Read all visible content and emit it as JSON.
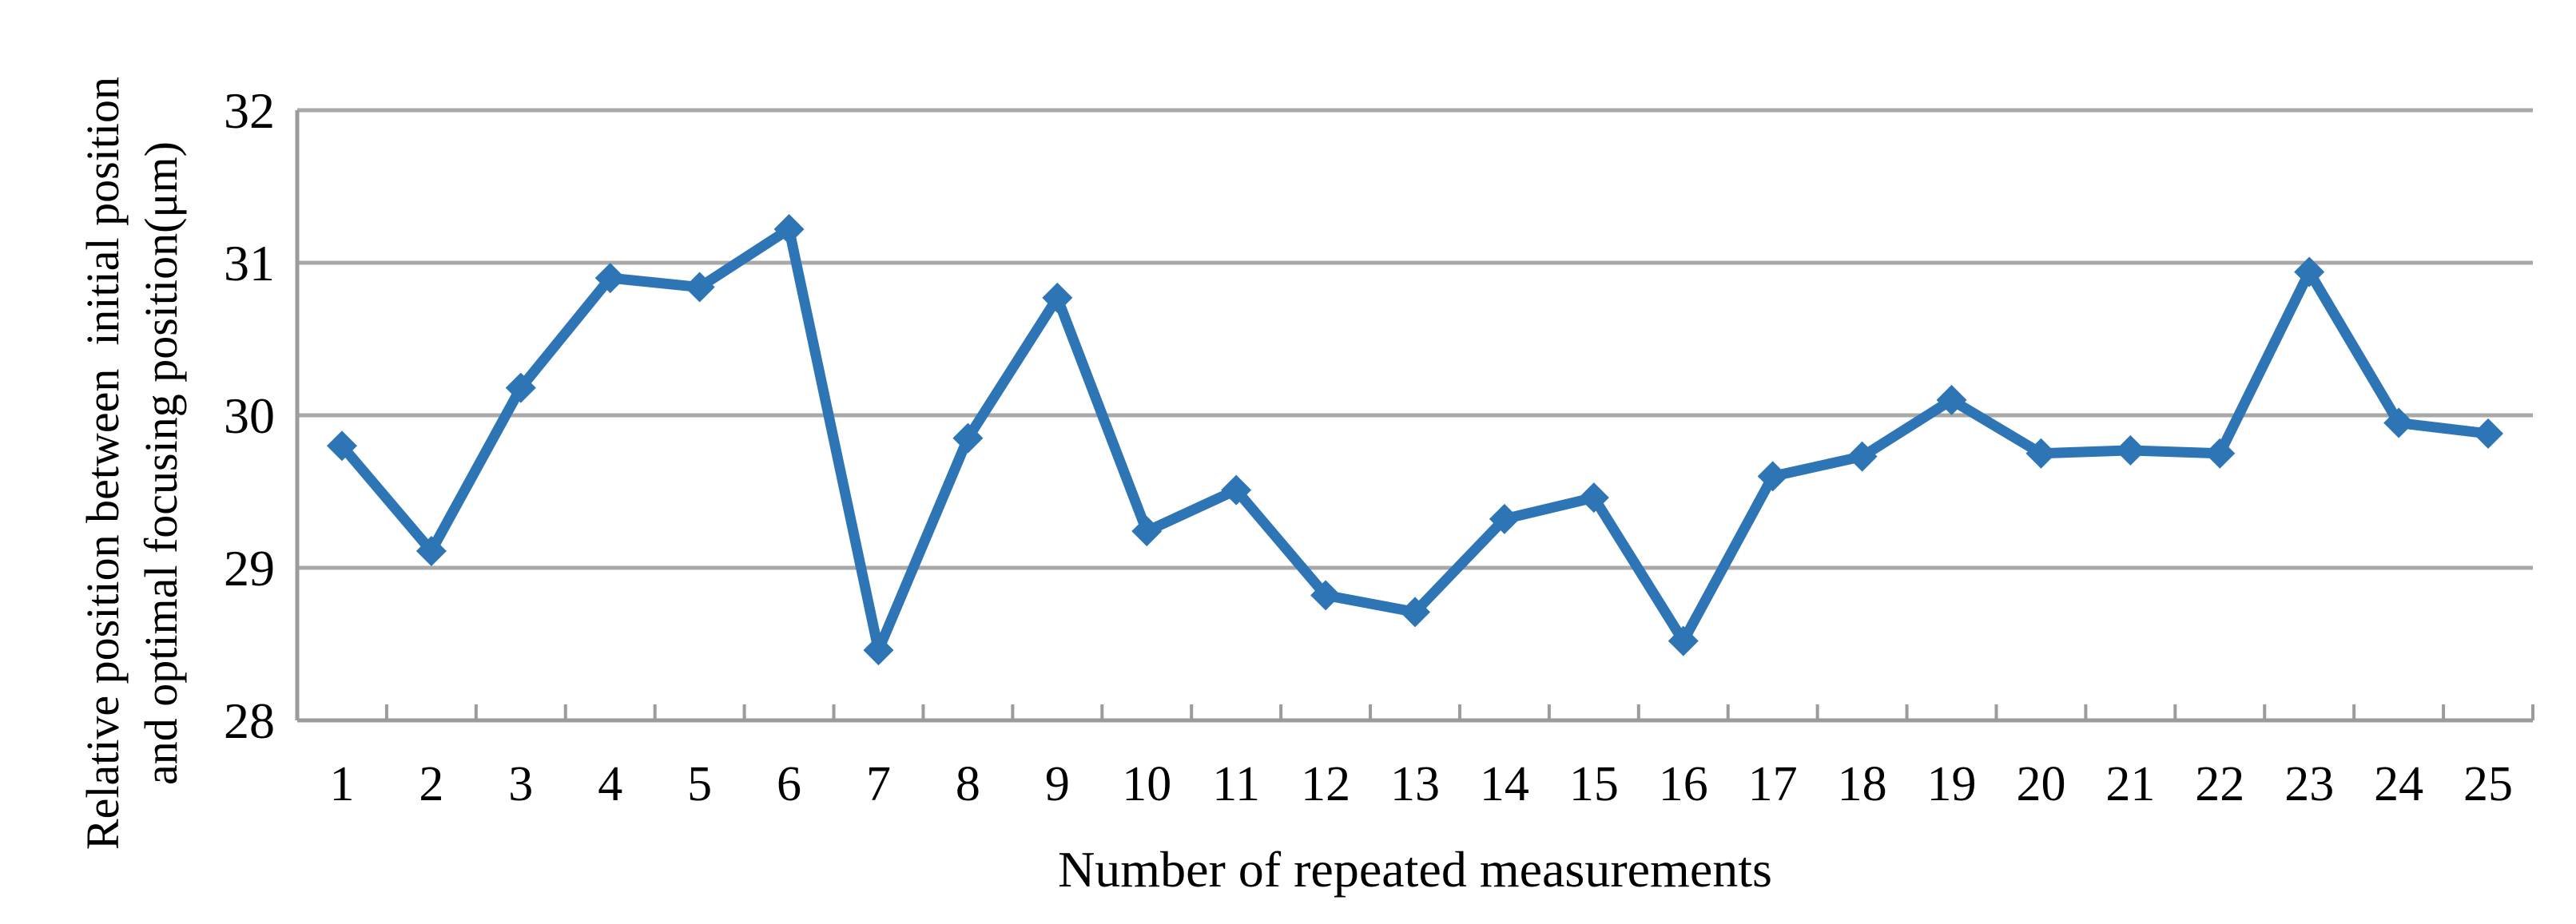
{
  "chart_data": {
    "type": "line",
    "title": "",
    "xlabel": "Number of repeated measurements",
    "ylabel_line1": "Relative position between  initial position",
    "ylabel_line2": "and optimal focusing position(μm)",
    "x": [
      1,
      2,
      3,
      4,
      5,
      6,
      7,
      8,
      9,
      10,
      11,
      12,
      13,
      14,
      15,
      16,
      17,
      18,
      19,
      20,
      21,
      22,
      23,
      24,
      25
    ],
    "series": [
      {
        "name": "Relative position",
        "values": [
          29.8,
          29.11,
          30.18,
          30.9,
          30.84,
          31.22,
          28.46,
          29.85,
          30.77,
          29.24,
          29.51,
          28.82,
          28.71,
          29.32,
          29.46,
          28.52,
          29.6,
          29.73,
          30.1,
          29.75,
          29.77,
          29.75,
          30.94,
          29.95,
          29.88
        ]
      }
    ],
    "ylim": [
      28,
      32
    ],
    "yticks": [
      28,
      29,
      30,
      31,
      32
    ],
    "grid": "horizontal-only",
    "legend": "none",
    "marker": "diamond",
    "colors": {
      "line": "#2E75B6",
      "marker": "#2E75B6",
      "gridline": "#A8A8A8",
      "axis": "#9B9B9B",
      "text": "#000000"
    }
  }
}
